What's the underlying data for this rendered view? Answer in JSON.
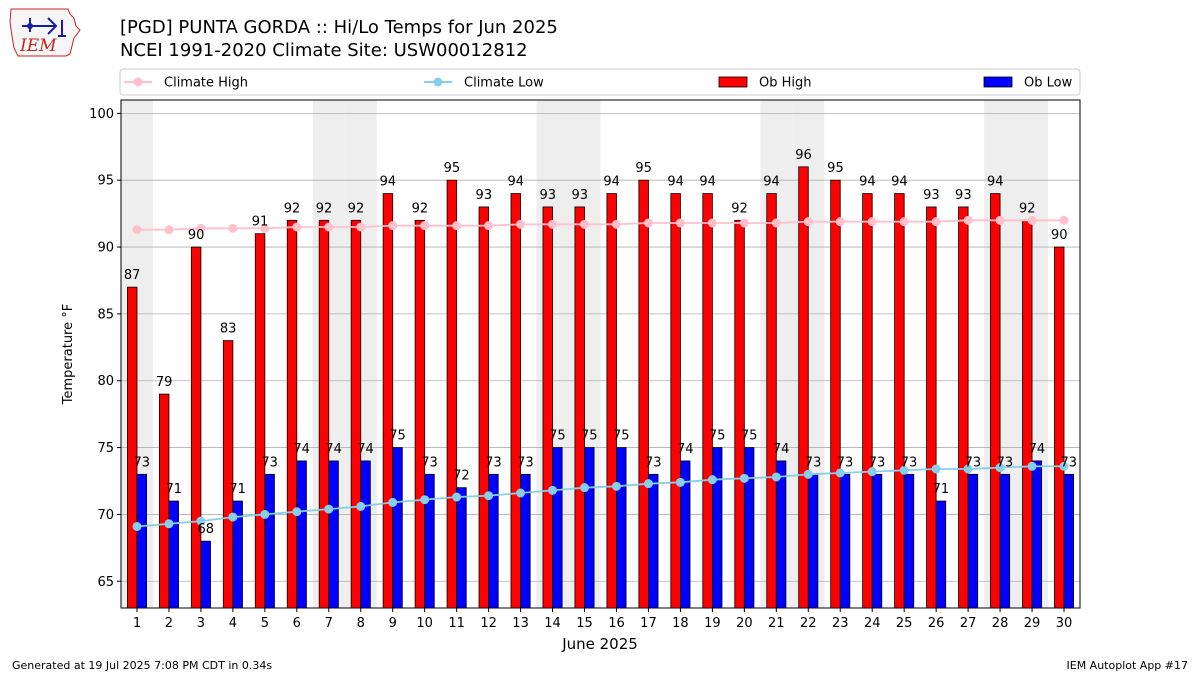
{
  "header": {
    "title_line1": "[PGD] PUNTA GORDA :: Hi/Lo Temps for Jun 2025",
    "title_line2": "NCEI 1991-2020 Climate Site: USW00012812",
    "logo_text": "IEM"
  },
  "footer": {
    "generated": "Generated at 19 Jul 2025 7:08 PM CDT in 0.34s",
    "app": "IEM Autoplot App #17"
  },
  "colors": {
    "ob_high": "#ff0000",
    "ob_low": "#0000ff",
    "climate_high": "#ffc0cb",
    "climate_low": "#87ceeb",
    "weekend_band": "#eeeeee",
    "grid": "#b0b0b0"
  },
  "chart_data": {
    "type": "bar",
    "title": "[PGD] PUNTA GORDA :: Hi/Lo Temps for Jun 2025",
    "xlabel": "June 2025",
    "ylabel": "Temperature °F",
    "ylim": [
      63,
      101
    ],
    "yticks": [
      65,
      70,
      75,
      80,
      85,
      90,
      95,
      100
    ],
    "grid": true,
    "legend_position": "top",
    "categories": [
      1,
      2,
      3,
      4,
      5,
      6,
      7,
      8,
      9,
      10,
      11,
      12,
      13,
      14,
      15,
      16,
      17,
      18,
      19,
      20,
      21,
      22,
      23,
      24,
      25,
      26,
      27,
      28,
      29,
      30
    ],
    "weekend_days": [
      1,
      7,
      8,
      14,
      15,
      21,
      22,
      28,
      29
    ],
    "series": [
      {
        "name": "Ob High",
        "kind": "bar",
        "values": [
          87,
          79,
          90,
          83,
          91,
          92,
          92,
          92,
          94,
          92,
          95,
          93,
          94,
          93,
          93,
          94,
          95,
          94,
          94,
          92,
          94,
          96,
          95,
          94,
          94,
          93,
          93,
          94,
          92,
          90
        ]
      },
      {
        "name": "Ob Low",
        "kind": "bar",
        "values": [
          73,
          71,
          68,
          71,
          73,
          74,
          74,
          74,
          75,
          73,
          72,
          73,
          73,
          75,
          75,
          75,
          73,
          74,
          75,
          75,
          74,
          73,
          73,
          73,
          73,
          71,
          73,
          73,
          74,
          73
        ]
      },
      {
        "name": "Climate High",
        "kind": "line",
        "values": [
          91.3,
          91.3,
          91.4,
          91.4,
          91.4,
          91.5,
          91.5,
          91.5,
          91.6,
          91.6,
          91.6,
          91.6,
          91.7,
          91.7,
          91.7,
          91.7,
          91.8,
          91.8,
          91.8,
          91.8,
          91.8,
          91.9,
          91.9,
          91.9,
          91.9,
          91.9,
          92.0,
          92.0,
          92.0,
          92.0
        ]
      },
      {
        "name": "Climate Low",
        "kind": "line",
        "values": [
          69.1,
          69.3,
          69.5,
          69.8,
          70.0,
          70.2,
          70.4,
          70.6,
          70.9,
          71.1,
          71.3,
          71.4,
          71.6,
          71.8,
          72.0,
          72.1,
          72.3,
          72.4,
          72.6,
          72.7,
          72.8,
          73.0,
          73.1,
          73.2,
          73.3,
          73.4,
          73.4,
          73.5,
          73.6,
          73.6
        ]
      }
    ]
  }
}
